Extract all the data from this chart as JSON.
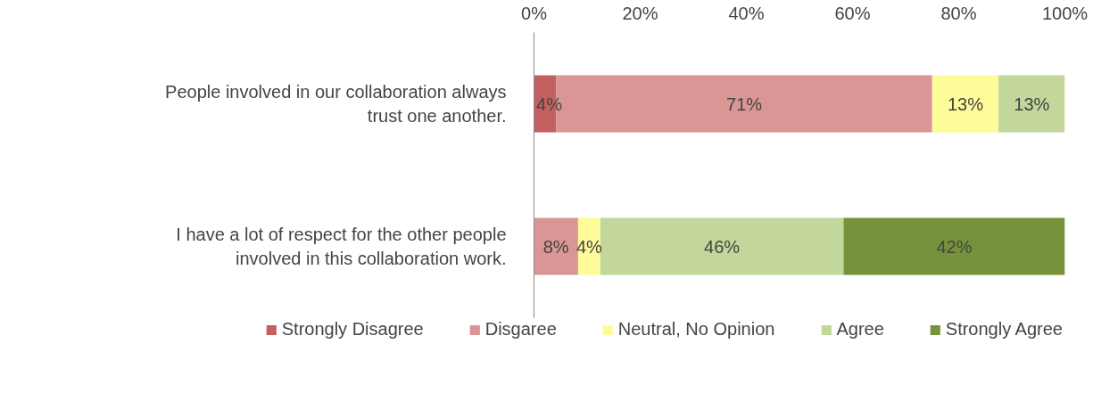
{
  "chart_data": {
    "type": "bar",
    "orientation": "horizontal",
    "stacked": true,
    "categories": [
      "People involved in our collaboration always trust one another.",
      "I have a lot of respect for the other people involved in this collaboration work."
    ],
    "series": [
      {
        "name": "Strongly Disagree",
        "color": "#c4605f",
        "values": [
          4.2,
          null
        ],
        "value_labels": [
          "4%",
          null
        ]
      },
      {
        "name": "Disgaree",
        "color": "#da9694",
        "values": [
          70.8,
          8.3
        ],
        "value_labels": [
          "71%",
          "8%"
        ]
      },
      {
        "name": "Neutral, No Opinion",
        "color": "#fdfc98",
        "values": [
          12.5,
          4.2
        ],
        "value_labels": [
          "13%",
          "4%"
        ]
      },
      {
        "name": "Agree",
        "color": "#c3d69b",
        "values": [
          12.5,
          45.8
        ],
        "value_labels": [
          "13%",
          "46%"
        ]
      },
      {
        "name": "Strongly Agree",
        "color": "#76933c",
        "values": [
          null,
          41.7
        ],
        "value_labels": [
          null,
          "42%"
        ]
      }
    ],
    "xlim": [
      0,
      100
    ],
    "xticks": [
      {
        "value": 0,
        "label": "0%"
      },
      {
        "value": 20,
        "label": "20%"
      },
      {
        "value": 40,
        "label": "40%"
      },
      {
        "value": 60,
        "label": "60%"
      },
      {
        "value": 80,
        "label": "80%"
      },
      {
        "value": 100,
        "label": "100%"
      }
    ],
    "grid": false,
    "legend": "bottom"
  }
}
